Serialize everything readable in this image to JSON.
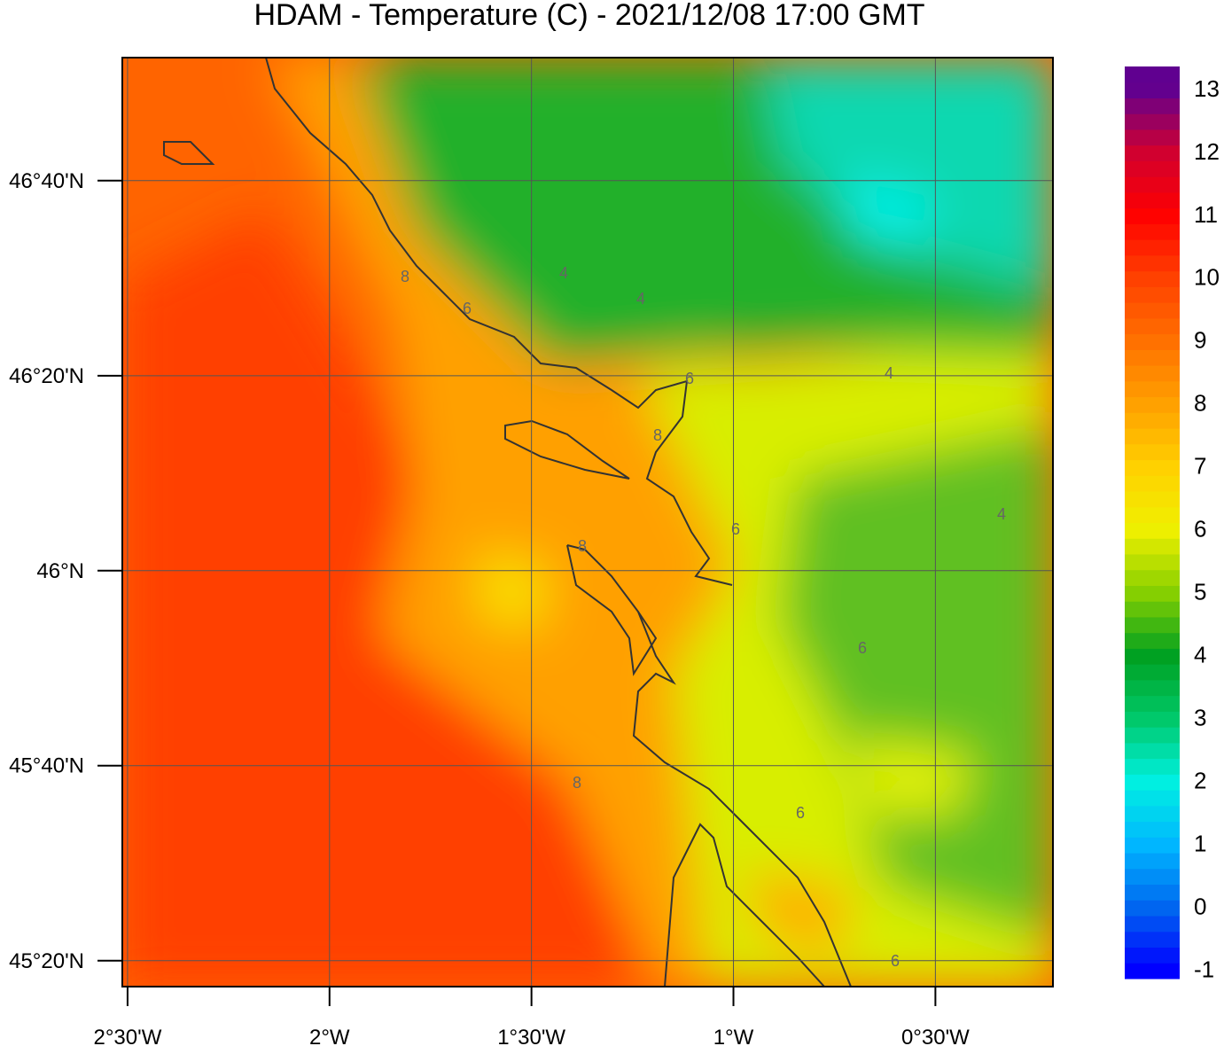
{
  "title": "HDAM - Temperature (C)  -  2021/12/08  17:00 GMT",
  "map": {
    "xlim": [
      -2.513,
      -0.209
    ],
    "ylim": [
      45.289,
      46.877
    ],
    "lon_ticks": [
      {
        "value": -2.5,
        "label": "2°30'W"
      },
      {
        "value": -2,
        "label": "2°W"
      },
      {
        "value": -1.5,
        "label": "1°30'W"
      },
      {
        "value": -1,
        "label": "1°W"
      },
      {
        "value": -0.5,
        "label": "0°30'W"
      }
    ],
    "lat_ticks": [
      {
        "value": 46.6667,
        "label": "46°40'N"
      },
      {
        "value": 46.3333,
        "label": "46°20'N"
      },
      {
        "value": 46,
        "label": "46°N"
      },
      {
        "value": 45.6667,
        "label": "45°40'N"
      },
      {
        "value": 45.3333,
        "label": "45°20'N"
      }
    ],
    "contour_labels": [
      8,
      6,
      4,
      4,
      6,
      8,
      4,
      6,
      8,
      4,
      6,
      8,
      6,
      6
    ]
  },
  "colorbar": {
    "lim": [
      -1.15,
      13.35
    ],
    "ticks": [
      -1,
      0,
      1,
      2,
      3,
      4,
      5,
      6,
      7,
      8,
      9,
      10,
      11,
      12,
      13
    ],
    "colors": [
      "#0000ff",
      "#0068f0",
      "#00b8ff",
      "#00f0e0",
      "#00c868",
      "#00a020",
      "#88d000",
      "#f0f000",
      "#ffd000",
      "#ffa000",
      "#ff7000",
      "#ff4000",
      "#ff0000",
      "#d00030",
      "#600090"
    ]
  }
}
